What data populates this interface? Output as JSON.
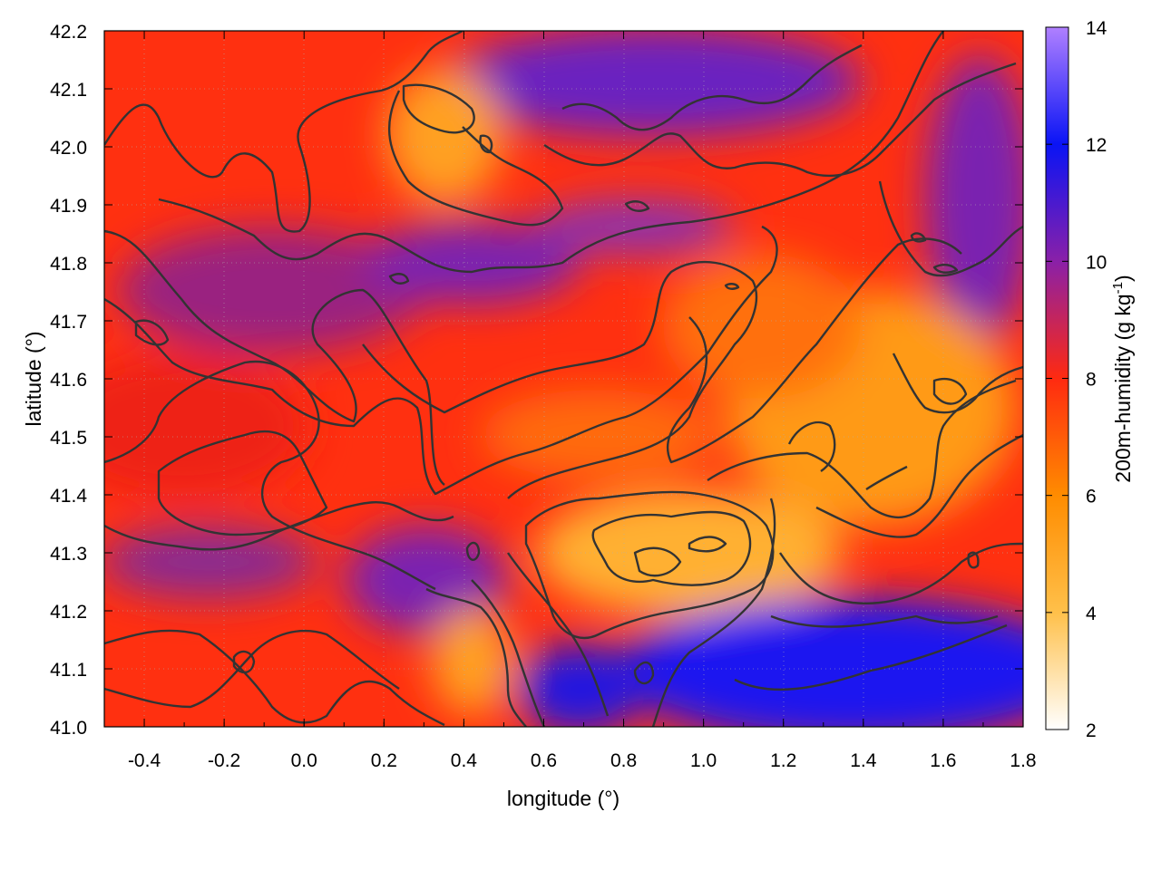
{
  "chart_data": {
    "type": "heatmap",
    "title": "",
    "xlabel": "longitude (°)",
    "ylabel": "latitude (°)",
    "xlim": [
      -0.5,
      1.8
    ],
    "ylim": [
      41.0,
      42.2
    ],
    "x_ticks": [
      "-0.4",
      "-0.2",
      "0.0",
      "0.2",
      "0.4",
      "0.6",
      "0.8",
      "1.0",
      "1.2",
      "1.4",
      "1.6",
      "1.8"
    ],
    "y_ticks": [
      "41.0",
      "41.1",
      "41.2",
      "41.3",
      "41.4",
      "41.5",
      "41.6",
      "41.7",
      "41.8",
      "41.9",
      "42.0",
      "42.1",
      "42.2"
    ],
    "colorbar": {
      "label": "200m-humidity (g kg",
      "label_sup": "-1",
      "label_end": ")",
      "range": [
        2,
        14
      ],
      "ticks": [
        "2",
        "4",
        "6",
        "8",
        "10",
        "12",
        "14"
      ],
      "colors": [
        "#ffffff",
        "#ffc04a",
        "#ff8c00",
        "#ff2a10",
        "#8a20a8",
        "#0a14f5",
        "#b080ff"
      ]
    },
    "grid": true,
    "field_samples": [
      {
        "lon": -0.35,
        "lat": 42.05,
        "value": 8.2
      },
      {
        "lon": -0.2,
        "lat": 41.75,
        "value": 9.3
      },
      {
        "lon": -0.3,
        "lat": 41.45,
        "value": 8.5
      },
      {
        "lon": 0.1,
        "lat": 41.55,
        "value": 8.3
      },
      {
        "lon": 0.3,
        "lat": 42.05,
        "value": 5.8
      },
      {
        "lon": 0.6,
        "lat": 42.15,
        "value": 10.0
      },
      {
        "lon": 1.0,
        "lat": 42.05,
        "value": 9.8
      },
      {
        "lon": 1.7,
        "lat": 41.85,
        "value": 10.6
      },
      {
        "lon": 0.85,
        "lat": 41.3,
        "value": 4.6
      },
      {
        "lon": 1.4,
        "lat": 41.45,
        "value": 5.2
      },
      {
        "lon": 1.2,
        "lat": 41.75,
        "value": 7.2
      },
      {
        "lon": 1.3,
        "lat": 41.1,
        "value": 11.6
      },
      {
        "lon": 0.55,
        "lat": 41.05,
        "value": 11.0
      },
      {
        "lon": 0.05,
        "lat": 41.25,
        "value": 9.2
      },
      {
        "lon": 0.45,
        "lat": 41.12,
        "value": 4.2
      },
      {
        "lon": 0.1,
        "lat": 41.85,
        "value": 9.2
      }
    ]
  }
}
